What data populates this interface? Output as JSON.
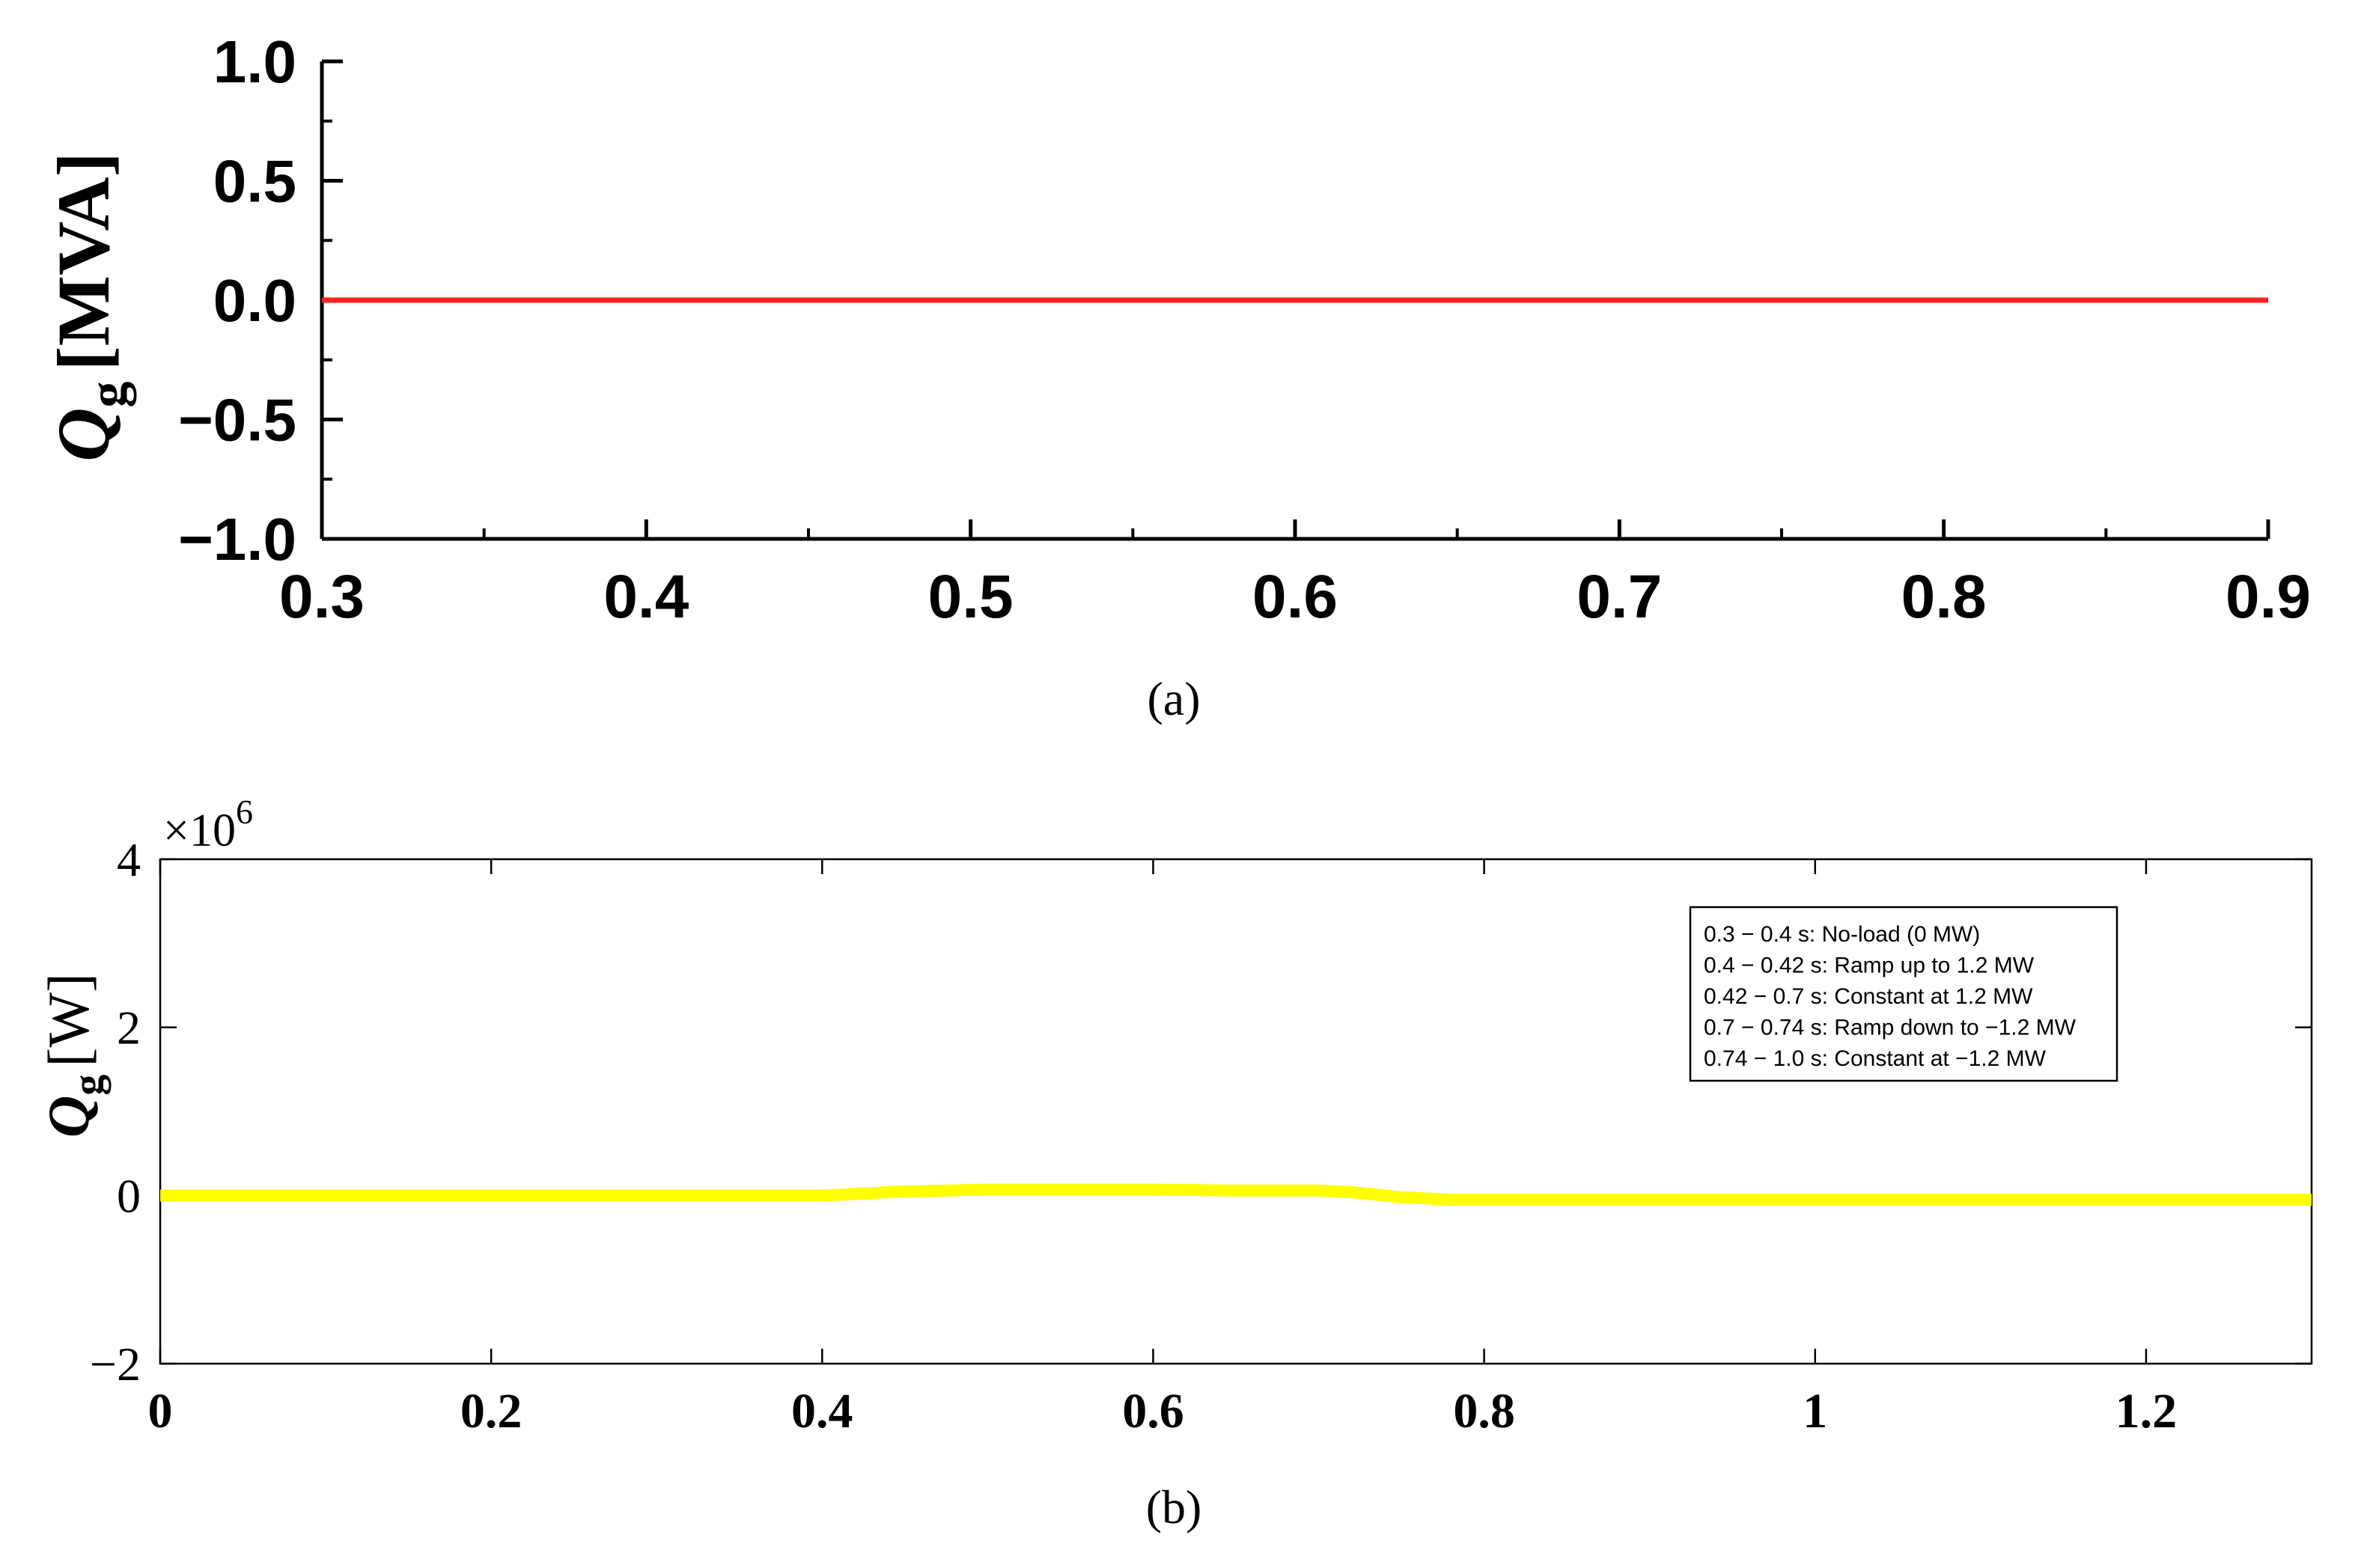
{
  "chart_data": [
    {
      "panel": "(a)",
      "type": "line",
      "ylabel_symbol": "Q",
      "ylabel_sub": "g",
      "ylabel_unit": "[MVA]",
      "xlim": [
        0.3,
        0.9
      ],
      "ylim": [
        -1.0,
        1.0
      ],
      "x_ticks": [
        0.3,
        0.4,
        0.5,
        0.6,
        0.7,
        0.8,
        0.9
      ],
      "x_tick_labels": [
        "0.3",
        "0.4",
        "0.5",
        "0.6",
        "0.7",
        "0.8",
        "0.9"
      ],
      "y_ticks": [
        1.0,
        0.5,
        0.0,
        -0.5,
        -1.0
      ],
      "y_tick_labels": [
        "1.0",
        "0.5",
        "0.0",
        "−0.5",
        "−1.0"
      ],
      "grid": false,
      "series": [
        {
          "color": "#ff2020",
          "x": [
            0.3,
            0.9
          ],
          "y": [
            0.0,
            0.0
          ]
        }
      ]
    },
    {
      "panel": "(b)",
      "type": "line",
      "ylabel_symbol": "Q",
      "ylabel_sub": "g",
      "ylabel_unit": "[W]",
      "scale_multiplier_base": "×10",
      "scale_multiplier_exp": "6",
      "xlim": [
        0,
        1.3
      ],
      "ylim": [
        -2,
        4
      ],
      "x_ticks": [
        0,
        0.2,
        0.4,
        0.6,
        0.8,
        1.0,
        1.2
      ],
      "x_tick_labels": [
        "0",
        "0.2",
        "0.4",
        "0.6",
        "0.8",
        "1",
        "1.2"
      ],
      "y_ticks": [
        4,
        2,
        0,
        -2
      ],
      "y_tick_labels": [
        "4",
        "2",
        "0",
        "−2"
      ],
      "grid": false,
      "legend_position": "top-right",
      "annotations": [
        "0.3 − 0.4 s: No-load (0 MW)",
        "0.4 − 0.42 s: Ramp up to 1.2 MW",
        "0.42 − 0.7 s: Constant at 1.2 MW",
        "0.7 − 0.74 s: Ramp down to −1.2 MW",
        "0.74 − 1.0 s: Constant at −1.2 MW"
      ],
      "series": [
        {
          "color": "#ffff00",
          "x": [
            0,
            0.1,
            0.2,
            0.3,
            0.4,
            0.45,
            0.5,
            0.55,
            0.6,
            0.65,
            0.7,
            0.72,
            0.75,
            0.78,
            0.8,
            0.9,
            1.0,
            1.1,
            1.2,
            1.3
          ],
          "y": [
            0.0,
            0.0,
            0.0,
            0.0,
            0.0,
            0.05,
            0.07,
            0.07,
            0.07,
            0.06,
            0.06,
            0.04,
            -0.02,
            -0.05,
            -0.05,
            -0.05,
            -0.05,
            -0.05,
            -0.05,
            -0.05
          ]
        }
      ]
    }
  ],
  "captions": {
    "a": "(a)",
    "b": "(b)"
  }
}
